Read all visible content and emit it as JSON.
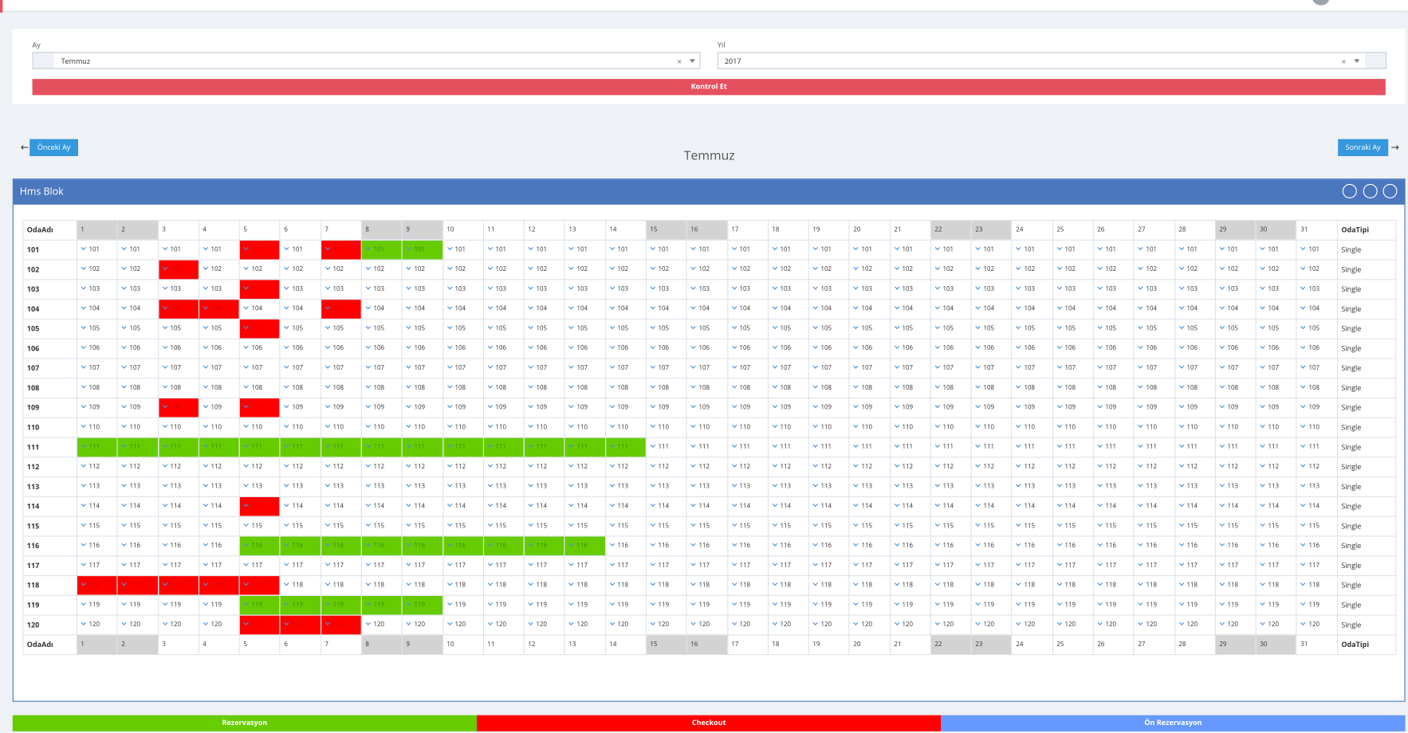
{
  "filter": {
    "month_label": "Ay",
    "month": "Temmuz",
    "year_label": "Yıl",
    "year": "2017",
    "button": "Kontrol Et"
  },
  "nav": {
    "prev": "Önceki Ay",
    "next": "Sonraki Ay",
    "current": "Temmuz"
  },
  "panel": {
    "title": "Hms Blok"
  },
  "table": {
    "room_header": "OdaAdı",
    "type_header": "OdaTipi",
    "days": [
      1,
      2,
      3,
      4,
      5,
      6,
      7,
      8,
      9,
      10,
      11,
      12,
      13,
      14,
      15,
      16,
      17,
      18,
      19,
      20,
      21,
      22,
      23,
      24,
      25,
      26,
      27,
      28,
      29,
      30,
      31
    ],
    "weekend_days": [
      1,
      2,
      8,
      9,
      15,
      16,
      22,
      23,
      29,
      30
    ],
    "rows": [
      {
        "room": "101",
        "type": "Single",
        "rezervasyon": [
          8,
          9
        ],
        "checkout": [
          5,
          7
        ]
      },
      {
        "room": "102",
        "type": "Single",
        "rezervasyon": [],
        "checkout": [
          3
        ]
      },
      {
        "room": "103",
        "type": "Single",
        "rezervasyon": [],
        "checkout": [
          5
        ]
      },
      {
        "room": "104",
        "type": "Single",
        "rezervasyon": [],
        "checkout": [
          3,
          4,
          7
        ]
      },
      {
        "room": "105",
        "type": "Single",
        "rezervasyon": [],
        "checkout": [
          5
        ]
      },
      {
        "room": "106",
        "type": "Single",
        "rezervasyon": [],
        "checkout": []
      },
      {
        "room": "107",
        "type": "Single",
        "rezervasyon": [],
        "checkout": []
      },
      {
        "room": "108",
        "type": "Single",
        "rezervasyon": [],
        "checkout": []
      },
      {
        "room": "109",
        "type": "Single",
        "rezervasyon": [],
        "checkout": [
          3,
          5
        ]
      },
      {
        "room": "110",
        "type": "Single",
        "rezervasyon": [],
        "checkout": []
      },
      {
        "room": "111",
        "type": "Single",
        "rezervasyon": [
          1,
          2,
          3,
          4,
          5,
          6,
          7,
          8,
          9,
          10,
          11,
          12,
          13,
          14
        ],
        "checkout": []
      },
      {
        "room": "112",
        "type": "Single",
        "rezervasyon": [],
        "checkout": []
      },
      {
        "room": "113",
        "type": "Single",
        "rezervasyon": [],
        "checkout": []
      },
      {
        "room": "114",
        "type": "Single",
        "rezervasyon": [],
        "checkout": [
          5
        ]
      },
      {
        "room": "115",
        "type": "Single",
        "rezervasyon": [],
        "checkout": []
      },
      {
        "room": "116",
        "type": "Single",
        "rezervasyon": [
          5,
          6,
          7,
          8,
          9,
          10,
          11,
          12,
          13
        ],
        "checkout": []
      },
      {
        "room": "117",
        "type": "Single",
        "rezervasyon": [],
        "checkout": []
      },
      {
        "room": "118",
        "type": "Single",
        "rezervasyon": [],
        "checkout": [
          1,
          2,
          3,
          4,
          5
        ]
      },
      {
        "room": "119",
        "type": "Single",
        "rezervasyon": [
          5,
          6,
          7,
          8,
          9
        ],
        "checkout": []
      },
      {
        "room": "120",
        "type": "Single",
        "rezervasyon": [],
        "checkout": [
          5,
          6,
          7
        ]
      }
    ]
  },
  "legend": {
    "items": [
      {
        "label": "Rezervasyon",
        "color": "#66cc00"
      },
      {
        "label": "Checkout",
        "color": "#ff0000"
      },
      {
        "label": "Ön Rezervasyon",
        "color": "#6699ff"
      }
    ]
  }
}
